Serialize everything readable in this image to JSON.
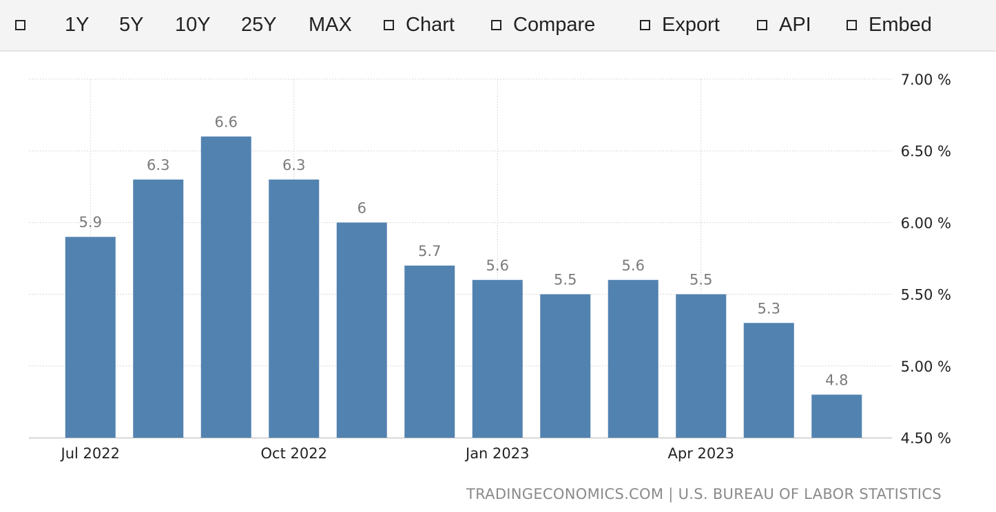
{
  "toolbar": {
    "items": [
      {
        "label": "",
        "checkbox": true
      },
      {
        "label": "1Y",
        "checkbox": false
      },
      {
        "label": "5Y",
        "checkbox": false
      },
      {
        "label": "10Y",
        "checkbox": false
      },
      {
        "label": "25Y",
        "checkbox": false
      },
      {
        "label": "MAX",
        "checkbox": false
      },
      {
        "label": "Chart",
        "checkbox": true
      },
      {
        "label": "Compare",
        "checkbox": true
      },
      {
        "label": "Export",
        "checkbox": true
      },
      {
        "label": "API",
        "checkbox": true
      },
      {
        "label": "Embed",
        "checkbox": true
      }
    ]
  },
  "source": {
    "site": "TRADINGECONOMICS.COM",
    "separator": "|",
    "agency": "U.S. BUREAU OF LABOR STATISTICS"
  },
  "chart_data": {
    "type": "bar",
    "title": "",
    "xlabel": "",
    "ylabel": "",
    "x_tick_labels": [
      "Jul 2022",
      "Oct 2022",
      "Jan 2023",
      "Apr 2023"
    ],
    "categories": [
      "2022-07",
      "2022-08",
      "2022-09",
      "2022-10",
      "2022-11",
      "2022-12",
      "2023-01",
      "2023-02",
      "2023-03",
      "2023-04",
      "2023-05",
      "2023-06"
    ],
    "values": [
      5.9,
      6.3,
      6.6,
      6.3,
      6.0,
      5.7,
      5.6,
      5.5,
      5.6,
      5.5,
      5.3,
      4.8
    ],
    "value_labels": [
      "5.9",
      "6.3",
      "6.6",
      "6.3",
      "6",
      "5.7",
      "5.6",
      "5.5",
      "5.6",
      "5.5",
      "5.3",
      "4.8"
    ],
    "ylim": [
      4.5,
      7.0
    ],
    "y_ticks": [
      4.5,
      5.0,
      5.5,
      6.0,
      6.5,
      7.0
    ],
    "y_tick_labels": [
      "4.50 %",
      "5.00 %",
      "5.50 %",
      "6.00 %",
      "6.50 %",
      "7.00 %"
    ],
    "y_axis_side": "right",
    "grid": true,
    "legend": "none",
    "colors": {
      "bar": "#5282b0",
      "value_label": "#7a7a7a",
      "tick_label": "#222222",
      "grid": "#d8d8d8"
    }
  }
}
